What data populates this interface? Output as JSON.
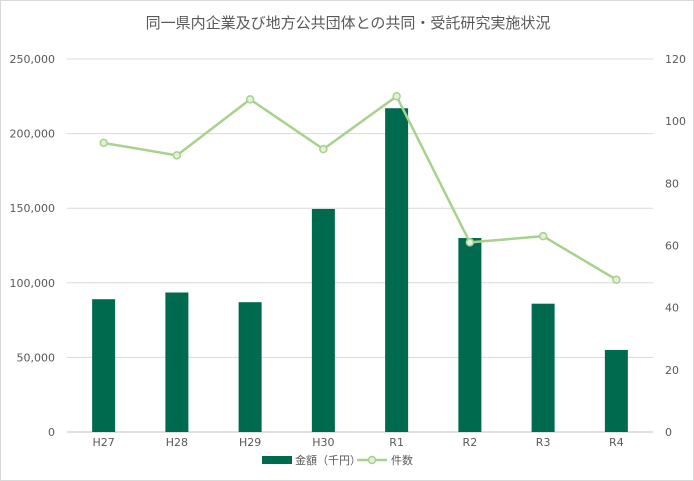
{
  "chart_data": {
    "type": "bar+line",
    "title": "同一県内企業及び地方公共団体との共同・受託研究実施状況",
    "categories": [
      "H27",
      "H28",
      "H29",
      "H30",
      "R1",
      "R2",
      "R3",
      "R4"
    ],
    "series": [
      {
        "name": "金額（千円）",
        "type": "bar",
        "axis": "left",
        "color": "#006a4e",
        "values": [
          89000,
          93500,
          87000,
          149500,
          217000,
          130000,
          86000,
          55000
        ]
      },
      {
        "name": "件数",
        "type": "line",
        "axis": "right",
        "color": "#a9d18e",
        "values": [
          93,
          89,
          107,
          91,
          108,
          61,
          63,
          49
        ]
      }
    ],
    "y_left": {
      "min": 0,
      "max": 250000,
      "step": 50000,
      "ticks": [
        "0",
        "50,000",
        "100,000",
        "150,000",
        "200,000",
        "250,000"
      ]
    },
    "y_right": {
      "min": 0,
      "max": 120,
      "step": 20,
      "ticks": [
        "0",
        "20",
        "40",
        "60",
        "80",
        "100",
        "120"
      ]
    },
    "grid": true,
    "legend_position": "bottom"
  }
}
